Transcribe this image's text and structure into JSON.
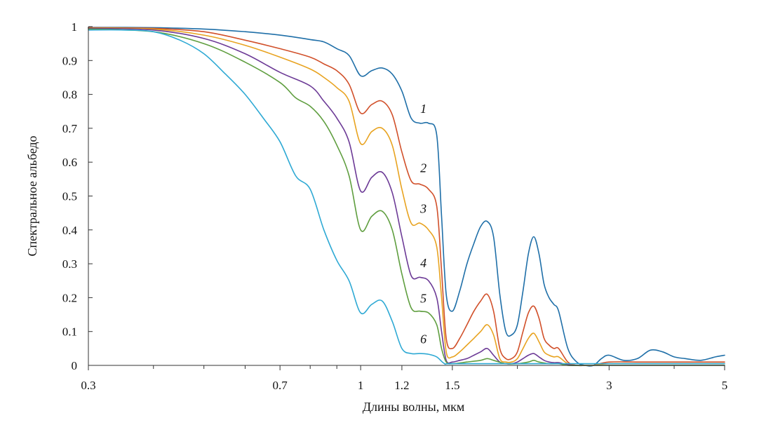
{
  "chart_data": {
    "type": "line",
    "title": "",
    "xlabel": "Длины волны, мкм",
    "ylabel": "Спектральное альбедо",
    "xscale": "log",
    "xlim": [
      0.3,
      5
    ],
    "ylim": [
      0,
      1
    ],
    "x_ticks": [
      0.3,
      0.7,
      1,
      1.2,
      1.5,
      3,
      5
    ],
    "x_tick_labels": [
      "0.3",
      "0.7",
      "1",
      "1.2",
      "1.5",
      "3",
      "5"
    ],
    "x_minor_ticks": [
      0.4,
      0.5,
      0.6,
      0.8,
      0.9,
      2,
      4
    ],
    "y_ticks": [
      0,
      0.1,
      0.2,
      0.3,
      0.4,
      0.5,
      0.6,
      0.7,
      0.8,
      0.9,
      1
    ],
    "y_tick_labels": [
      "0",
      "0.1",
      "0.2",
      "0.3",
      "0.4",
      "0.5",
      "0.6",
      "0.7",
      "0.8",
      "0.9",
      "1"
    ],
    "grid": false,
    "legend": "inline curve labels",
    "series": [
      {
        "name": "1",
        "color": "#1f6fa8",
        "label": {
          "text": "1",
          "x": 1.32,
          "y": 0.745
        },
        "x": [
          0.3,
          0.4,
          0.5,
          0.6,
          0.7,
          0.8,
          0.85,
          0.9,
          0.95,
          1.0,
          1.05,
          1.1,
          1.15,
          1.2,
          1.25,
          1.3,
          1.35,
          1.4,
          1.43,
          1.46,
          1.5,
          1.55,
          1.6,
          1.65,
          1.7,
          1.75,
          1.8,
          1.85,
          1.9,
          1.95,
          2.0,
          2.05,
          2.1,
          2.15,
          2.2,
          2.25,
          2.3,
          2.35,
          2.4,
          2.5,
          2.6,
          2.7,
          2.8,
          2.9,
          3.0,
          3.2,
          3.4,
          3.6,
          3.8,
          4.0,
          4.2,
          4.5,
          4.8,
          5.0
        ],
        "y": [
          0.998,
          0.997,
          0.993,
          0.985,
          0.975,
          0.962,
          0.955,
          0.935,
          0.915,
          0.855,
          0.87,
          0.878,
          0.86,
          0.81,
          0.73,
          0.715,
          0.715,
          0.68,
          0.44,
          0.21,
          0.16,
          0.22,
          0.3,
          0.36,
          0.41,
          0.425,
          0.38,
          0.21,
          0.1,
          0.09,
          0.12,
          0.22,
          0.33,
          0.38,
          0.33,
          0.24,
          0.2,
          0.18,
          0.16,
          0.05,
          0.01,
          0.0,
          0.0,
          0.02,
          0.03,
          0.015,
          0.02,
          0.045,
          0.04,
          0.025,
          0.02,
          0.015,
          0.025,
          0.03
        ]
      },
      {
        "name": "2",
        "color": "#d1502a",
        "label": {
          "text": "2",
          "x": 1.32,
          "y": 0.57
        },
        "x": [
          0.3,
          0.4,
          0.5,
          0.6,
          0.7,
          0.8,
          0.85,
          0.9,
          0.95,
          1.0,
          1.05,
          1.1,
          1.15,
          1.2,
          1.25,
          1.3,
          1.35,
          1.4,
          1.43,
          1.46,
          1.5,
          1.55,
          1.6,
          1.65,
          1.7,
          1.75,
          1.8,
          1.85,
          1.9,
          1.95,
          2.0,
          2.05,
          2.1,
          2.15,
          2.2,
          2.25,
          2.3,
          2.35,
          2.4,
          2.5,
          2.6,
          2.7,
          2.8,
          3.0,
          3.5,
          4.0,
          5.0
        ],
        "y": [
          0.997,
          0.995,
          0.985,
          0.96,
          0.935,
          0.91,
          0.89,
          0.87,
          0.83,
          0.745,
          0.77,
          0.78,
          0.74,
          0.63,
          0.545,
          0.535,
          0.52,
          0.47,
          0.28,
          0.08,
          0.05,
          0.08,
          0.12,
          0.16,
          0.19,
          0.21,
          0.16,
          0.05,
          0.02,
          0.02,
          0.04,
          0.1,
          0.155,
          0.175,
          0.14,
          0.08,
          0.06,
          0.05,
          0.05,
          0.01,
          0.0,
          0.0,
          0.0,
          0.01,
          0.01,
          0.01,
          0.01
        ]
      },
      {
        "name": "3",
        "color": "#e8a320",
        "label": {
          "text": "3",
          "x": 1.32,
          "y": 0.45
        },
        "x": [
          0.3,
          0.4,
          0.5,
          0.6,
          0.7,
          0.8,
          0.85,
          0.9,
          0.95,
          1.0,
          1.05,
          1.1,
          1.15,
          1.2,
          1.25,
          1.3,
          1.35,
          1.4,
          1.43,
          1.46,
          1.5,
          1.55,
          1.6,
          1.65,
          1.7,
          1.75,
          1.8,
          1.85,
          1.9,
          1.95,
          2.0,
          2.05,
          2.1,
          2.15,
          2.2,
          2.25,
          2.3,
          2.35,
          2.4,
          2.5,
          2.6,
          2.7,
          2.8,
          3.0,
          3.5,
          4.0,
          5.0
        ],
        "y": [
          0.996,
          0.993,
          0.975,
          0.945,
          0.91,
          0.875,
          0.85,
          0.82,
          0.78,
          0.655,
          0.69,
          0.7,
          0.65,
          0.52,
          0.42,
          0.42,
          0.4,
          0.35,
          0.2,
          0.04,
          0.025,
          0.04,
          0.06,
          0.08,
          0.1,
          0.12,
          0.09,
          0.02,
          0.01,
          0.01,
          0.02,
          0.05,
          0.08,
          0.095,
          0.07,
          0.04,
          0.03,
          0.025,
          0.025,
          0.005,
          0.0,
          0.0,
          0.0,
          0.005,
          0.005,
          0.005,
          0.005
        ]
      },
      {
        "name": "4",
        "color": "#6c3a96",
        "label": {
          "text": "4",
          "x": 1.32,
          "y": 0.29
        },
        "x": [
          0.3,
          0.4,
          0.5,
          0.6,
          0.7,
          0.8,
          0.85,
          0.9,
          0.95,
          1.0,
          1.05,
          1.1,
          1.15,
          1.2,
          1.25,
          1.3,
          1.35,
          1.4,
          1.43,
          1.46,
          1.5,
          1.55,
          1.6,
          1.65,
          1.7,
          1.75,
          1.8,
          1.85,
          1.9,
          1.95,
          2.0,
          2.05,
          2.1,
          2.15,
          2.2,
          2.25,
          2.3,
          2.35,
          2.4,
          2.5,
          2.6,
          2.7,
          2.8,
          3.0,
          5.0
        ],
        "y": [
          0.995,
          0.99,
          0.965,
          0.92,
          0.865,
          0.825,
          0.78,
          0.73,
          0.66,
          0.515,
          0.555,
          0.57,
          0.51,
          0.38,
          0.265,
          0.26,
          0.25,
          0.2,
          0.1,
          0.015,
          0.01,
          0.015,
          0.02,
          0.03,
          0.04,
          0.05,
          0.03,
          0.01,
          0.005,
          0.005,
          0.01,
          0.02,
          0.03,
          0.035,
          0.025,
          0.015,
          0.01,
          0.008,
          0.008,
          0.002,
          0.0,
          0.0,
          0.0,
          0.0,
          0.0
        ]
      },
      {
        "name": "5",
        "color": "#5f9e3f",
        "label": {
          "text": "5",
          "x": 1.32,
          "y": 0.185
        },
        "x": [
          0.3,
          0.4,
          0.5,
          0.6,
          0.7,
          0.75,
          0.8,
          0.85,
          0.9,
          0.95,
          1.0,
          1.05,
          1.1,
          1.15,
          1.2,
          1.25,
          1.3,
          1.35,
          1.4,
          1.43,
          1.46,
          1.5,
          1.6,
          1.7,
          1.75,
          1.8,
          1.9,
          2.0,
          2.1,
          2.15,
          2.2,
          2.3,
          2.4,
          2.5,
          2.7,
          3.0,
          5.0
        ],
        "y": [
          0.993,
          0.985,
          0.95,
          0.895,
          0.835,
          0.79,
          0.765,
          0.72,
          0.65,
          0.56,
          0.4,
          0.44,
          0.455,
          0.4,
          0.27,
          0.17,
          0.16,
          0.155,
          0.12,
          0.05,
          0.01,
          0.005,
          0.01,
          0.015,
          0.02,
          0.015,
          0.005,
          0.005,
          0.01,
          0.015,
          0.01,
          0.005,
          0.005,
          0.0,
          0.0,
          0.0,
          0.0
        ]
      },
      {
        "name": "6",
        "color": "#2ea9d4",
        "label": {
          "text": "6",
          "x": 1.32,
          "y": 0.065
        },
        "x": [
          0.3,
          0.35,
          0.4,
          0.45,
          0.5,
          0.55,
          0.6,
          0.65,
          0.7,
          0.75,
          0.8,
          0.85,
          0.9,
          0.95,
          1.0,
          1.05,
          1.1,
          1.15,
          1.2,
          1.25,
          1.3,
          1.35,
          1.4,
          1.45,
          1.5,
          2.0,
          3.0,
          4.0,
          5.0
        ],
        "y": [
          0.99,
          0.99,
          0.985,
          0.96,
          0.92,
          0.86,
          0.8,
          0.73,
          0.66,
          0.56,
          0.52,
          0.4,
          0.31,
          0.25,
          0.155,
          0.18,
          0.19,
          0.13,
          0.05,
          0.035,
          0.035,
          0.033,
          0.025,
          0.005,
          0.005,
          0.005,
          0.005,
          0.005,
          0.005
        ]
      }
    ]
  }
}
